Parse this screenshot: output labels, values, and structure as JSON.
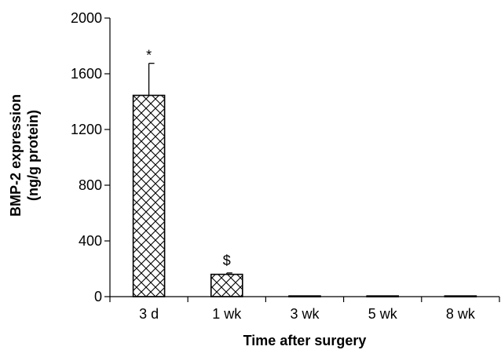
{
  "chart_data": {
    "type": "bar",
    "title": "",
    "xlabel": "Time after surgery",
    "ylabel": [
      "BMP-2 expression",
      "(ng/g protein)"
    ],
    "categories": [
      "3 d",
      "1 wk",
      "3 wk",
      "5 wk",
      "8 wk"
    ],
    "values": [
      1445,
      160,
      5,
      5,
      5
    ],
    "error": [
      230,
      10,
      0,
      0,
      0
    ],
    "annotations": [
      "*",
      "$",
      "",
      "",
      ""
    ],
    "ylim": [
      0,
      2000
    ],
    "yticks": [
      0,
      400,
      800,
      1200,
      1600,
      2000
    ],
    "grid": false,
    "legend": "none",
    "bar_fill": "crosshatch",
    "bar_color": "#000000"
  }
}
